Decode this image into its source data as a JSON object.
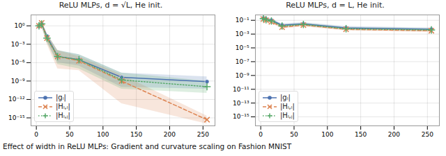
{
  "chart_data": [
    {
      "type": "line",
      "title": "ReLU MLPs, d = √L, He init.",
      "log": "y",
      "grid": true,
      "legend": "lower left",
      "x": [
        4,
        8,
        16,
        32,
        64,
        128,
        256
      ],
      "xlim": [
        -8,
        268
      ],
      "xticks": [
        0,
        50,
        100,
        150,
        200,
        250
      ],
      "ylim": [
        5e-17,
        60
      ],
      "yticks": [
        {
          "value": 1,
          "label": "10⁰"
        },
        {
          "value": 0.001,
          "label": "10⁻³"
        },
        {
          "value": 1e-06,
          "label": "10⁻⁶"
        },
        {
          "value": 1e-09,
          "label": "10⁻⁹"
        },
        {
          "value": 1e-12,
          "label": "10⁻¹²"
        },
        {
          "value": 1e-15,
          "label": "10⁻¹⁵"
        }
      ],
      "series": [
        {
          "name": "|gₗ|",
          "color": "#4c72b0",
          "marker": "o",
          "line_style": "solid",
          "values": [
            0.9,
            2,
            0.02,
            1e-05,
            3e-06,
            4e-09,
            8e-10
          ],
          "lower": [
            0.3,
            0.8,
            0.003,
            1e-06,
            3e-07,
            1e-10,
            5e-11
          ],
          "upper": [
            3,
            5,
            0.05,
            0.0001,
            2e-05,
            2e-08,
            5e-09
          ]
        },
        {
          "name": "|Hₗ,ₗ|",
          "color": "#dd8452",
          "marker": "x",
          "line_style": "dashed",
          "values": [
            1,
            3,
            0.01,
            1e-05,
            2e-06,
            1e-09,
            5e-16
          ],
          "lower": [
            0.3,
            0.8,
            0.001,
            1e-07,
            5e-08,
            2e-13,
            1e-16
          ],
          "upper": [
            3,
            6,
            0.05,
            0.0001,
            1e-05,
            1e-08,
            2e-15
          ]
        },
        {
          "name": "|Hₗ,ⱼ|",
          "color": "#55a868",
          "marker": "+",
          "line_style": "dotted",
          "values": [
            1,
            2,
            0.01,
            1e-05,
            3e-06,
            1.5e-09,
            1.2e-10
          ],
          "lower": [
            0.3,
            0.8,
            0.002,
            5e-07,
            1e-07,
            5e-11,
            1e-11
          ],
          "upper": [
            3,
            5,
            0.05,
            0.0001,
            2e-05,
            2e-08,
            1e-09
          ]
        }
      ]
    },
    {
      "type": "line",
      "title": "ReLU MLPs, d = L, He init.",
      "log": "y",
      "grid": true,
      "legend": "lower left",
      "x": [
        4,
        8,
        16,
        32,
        64,
        128,
        256
      ],
      "xlim": [
        -8,
        268
      ],
      "xticks": [
        0,
        50,
        100,
        150,
        200,
        250
      ],
      "ylim": [
        5e-17,
        0.6
      ],
      "yticks": [
        {
          "value": 0.1,
          "label": "10⁻¹"
        },
        {
          "value": 0.001,
          "label": "10⁻³"
        },
        {
          "value": 1e-05,
          "label": "10⁻⁵"
        },
        {
          "value": 1e-07,
          "label": "10⁻⁷"
        },
        {
          "value": 1e-09,
          "label": "10⁻⁹"
        },
        {
          "value": 1e-11,
          "label": "10⁻¹¹"
        },
        {
          "value": 1e-13,
          "label": "10⁻¹³"
        },
        {
          "value": 1e-15,
          "label": "10⁻¹⁵"
        }
      ],
      "series": [
        {
          "name": "|gₗ|",
          "color": "#4c72b0",
          "marker": "o",
          "line_style": "solid",
          "values": [
            0.2,
            0.15,
            0.1,
            0.02,
            0.03,
            0.008,
            0.005
          ],
          "lower": [
            0.12,
            0.09,
            0.06,
            0.012,
            0.018,
            0.005,
            0.003
          ],
          "upper": [
            0.32,
            0.24,
            0.16,
            0.032,
            0.048,
            0.013,
            0.008
          ]
        },
        {
          "name": "|Hₗ,ₗ|",
          "color": "#dd8452",
          "marker": "x",
          "line_style": "dashed",
          "values": [
            0.15,
            0.1,
            0.06,
            0.01,
            0.02,
            0.005,
            0.003
          ],
          "lower": [
            0.09,
            0.06,
            0.036,
            0.006,
            0.012,
            0.003,
            0.0018
          ],
          "upper": [
            0.24,
            0.16,
            0.096,
            0.016,
            0.032,
            0.008,
            0.0048
          ]
        },
        {
          "name": "|Hₗ,ⱼ|",
          "color": "#55a868",
          "marker": "+",
          "line_style": "dotted",
          "values": [
            0.18,
            0.12,
            0.08,
            0.015,
            0.025,
            0.006,
            0.004
          ],
          "lower": [
            0.11,
            0.07,
            0.048,
            0.009,
            0.015,
            0.0036,
            0.0024
          ],
          "upper": [
            0.29,
            0.19,
            0.13,
            0.024,
            0.04,
            0.0096,
            0.0064
          ]
        }
      ]
    }
  ],
  "caption": "Effect of width in ReLU MLPs: Gradient and curvature scaling on Fashion MNIST"
}
